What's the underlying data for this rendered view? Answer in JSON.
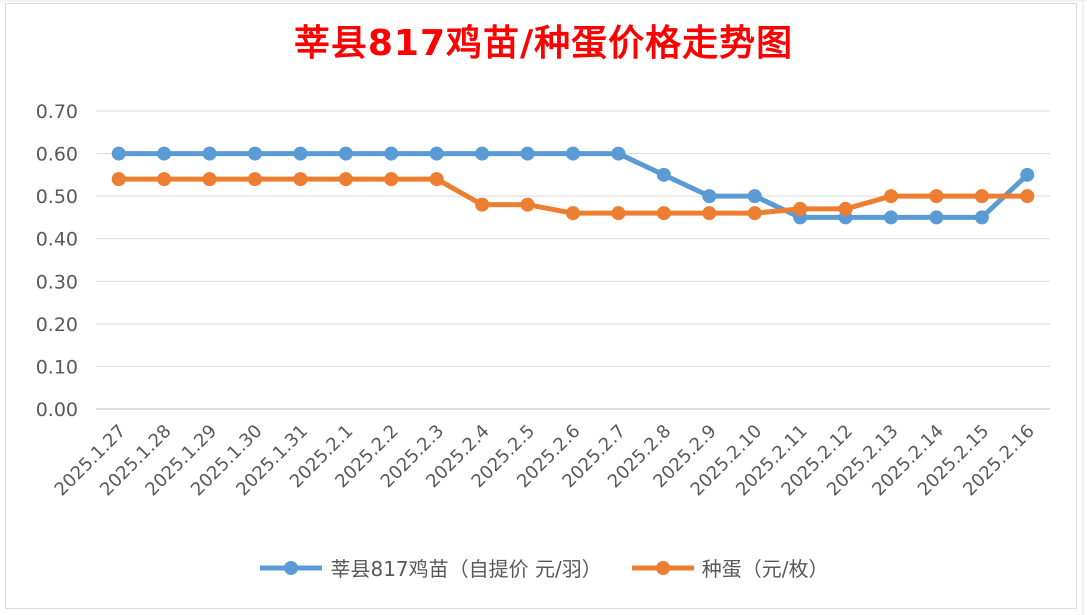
{
  "chart_data": {
    "type": "line",
    "title": "莘县817鸡苗/种蛋价格走势图",
    "xlabel": "",
    "ylabel": "",
    "ylim": [
      0,
      0.7
    ],
    "yticks": [
      "0.00",
      "0.10",
      "0.20",
      "0.30",
      "0.40",
      "0.50",
      "0.60",
      "0.70"
    ],
    "grid": true,
    "legend_position": "bottom",
    "categories": [
      "2025.1.27",
      "2025.1.28",
      "2025.1.29",
      "2025.1.30",
      "2025.1.31",
      "2025.2.1",
      "2025.2.2",
      "2025.2.3",
      "2025.2.4",
      "2025.2.5",
      "2025.2.6",
      "2025.2.7",
      "2025.2.8",
      "2025.2.9",
      "2025.2.10",
      "2025.2.11",
      "2025.2.12",
      "2025.2.13",
      "2025.2.14",
      "2025.2.15",
      "2025.2.16"
    ],
    "series": [
      {
        "name": "莘县817鸡苗（自提价 元/羽）",
        "color": "#5b9bd5",
        "values": [
          0.6,
          0.6,
          0.6,
          0.6,
          0.6,
          0.6,
          0.6,
          0.6,
          0.6,
          0.6,
          0.6,
          0.6,
          0.55,
          0.5,
          0.5,
          0.45,
          0.45,
          0.45,
          0.45,
          0.45,
          0.55
        ]
      },
      {
        "name": "种蛋（元/枚）",
        "color": "#ed7d31",
        "values": [
          0.54,
          0.54,
          0.54,
          0.54,
          0.54,
          0.54,
          0.54,
          0.54,
          0.48,
          0.48,
          0.46,
          0.46,
          0.46,
          0.46,
          0.46,
          0.47,
          0.47,
          0.5,
          0.5,
          0.5,
          0.5
        ]
      }
    ]
  }
}
